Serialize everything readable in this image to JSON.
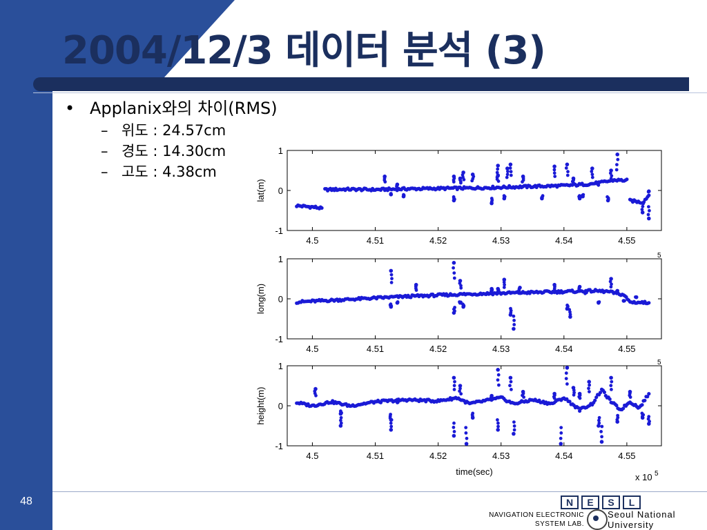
{
  "slide": {
    "title": "2004/12/3 데이터 분석 (3)",
    "bullet_main": "Applanix와의 차이(RMS)",
    "bullet_marker": "•",
    "sub_marker": "–",
    "sub_items": [
      "위도 : 24.57cm",
      "경도 : 14.30cm",
      "고도 : 4.38cm"
    ],
    "page_number": "48"
  },
  "footer": {
    "logo_letters": [
      "N",
      "E",
      "S",
      "L"
    ],
    "lab_line1": "NAVIGATION ELECTRONIC",
    "lab_line2": "SYSTEM LAB.",
    "univ_line1": "Seoul National",
    "univ_line2": "University"
  },
  "colors": {
    "band": "#2a4f9a",
    "title": "#1b2f5e",
    "marker": "#1a1ad6"
  },
  "chart_data": [
    {
      "type": "scatter",
      "ylabel": "lat(m)",
      "xlabel": "",
      "ylim": [
        -1,
        1
      ],
      "xlim": [
        4.496,
        4.5555
      ],
      "yticks": [
        "-1",
        "0",
        "1"
      ],
      "xticks": [
        4.5,
        4.51,
        4.52,
        4.53,
        4.54,
        4.55
      ],
      "xtick_labels": [
        "4.5",
        "4.51",
        "4.52",
        "4.53",
        "4.54",
        "4.55"
      ],
      "exponent": "",
      "baseline": [
        [
          4.4975,
          -0.38
        ],
        [
          4.5005,
          -0.42
        ],
        [
          4.5015,
          -0.45
        ],
        [
          4.502,
          0.02
        ],
        [
          4.505,
          0.03
        ],
        [
          4.51,
          0.02
        ],
        [
          4.515,
          0.04
        ],
        [
          4.52,
          0.05
        ],
        [
          4.525,
          0.06
        ],
        [
          4.53,
          0.08
        ],
        [
          4.535,
          0.1
        ],
        [
          4.54,
          0.12
        ],
        [
          4.544,
          0.16
        ],
        [
          4.546,
          0.2
        ],
        [
          4.548,
          0.26
        ],
        [
          4.55,
          0.25
        ],
        [
          4.5505,
          -0.25
        ],
        [
          4.5525,
          -0.3
        ],
        [
          4.5535,
          -0.12
        ]
      ],
      "outliers": [
        [
          4.5125,
          -0.1
        ],
        [
          4.5115,
          0.35
        ],
        [
          4.5135,
          0.15
        ],
        [
          4.5145,
          -0.15
        ],
        [
          4.5225,
          -0.25
        ],
        [
          4.5225,
          0.35
        ],
        [
          4.5235,
          0.3
        ],
        [
          4.524,
          0.45
        ],
        [
          4.5255,
          0.4
        ],
        [
          4.5285,
          -0.32
        ],
        [
          4.5295,
          0.38
        ],
        [
          4.5295,
          0.62
        ],
        [
          4.5305,
          -0.2
        ],
        [
          4.531,
          0.55
        ],
        [
          4.5315,
          0.65
        ],
        [
          4.5335,
          0.35
        ],
        [
          4.5365,
          -0.2
        ],
        [
          4.5385,
          0.6
        ],
        [
          4.5405,
          0.65
        ],
        [
          4.5415,
          0.3
        ],
        [
          4.5425,
          -0.2
        ],
        [
          4.543,
          -0.15
        ],
        [
          4.5445,
          0.55
        ],
        [
          4.5455,
          0.2
        ],
        [
          4.547,
          -0.25
        ],
        [
          4.5475,
          0.5
        ],
        [
          4.5485,
          0.9
        ],
        [
          4.5525,
          -0.55
        ],
        [
          4.5535,
          -0.7
        ],
        [
          4.5535,
          -0.02
        ]
      ]
    },
    {
      "type": "scatter",
      "ylabel": "long(m)",
      "xlabel": "",
      "ylim": [
        -1,
        1
      ],
      "xlim": [
        4.496,
        4.5555
      ],
      "yticks": [
        "-1",
        "0",
        "1"
      ],
      "xticks": [
        4.5,
        4.51,
        4.52,
        4.53,
        4.54,
        4.55
      ],
      "xtick_labels": [
        "4.5",
        "4.51",
        "4.52",
        "4.53",
        "4.54",
        "4.55"
      ],
      "exponent": "5",
      "baseline": [
        [
          4.4975,
          -0.08
        ],
        [
          4.5,
          -0.06
        ],
        [
          4.505,
          -0.02
        ],
        [
          4.51,
          0.02
        ],
        [
          4.515,
          0.06
        ],
        [
          4.52,
          0.09
        ],
        [
          4.525,
          0.12
        ],
        [
          4.53,
          0.14
        ],
        [
          4.535,
          0.16
        ],
        [
          4.54,
          0.18
        ],
        [
          4.545,
          0.2
        ],
        [
          4.547,
          0.18
        ],
        [
          4.5495,
          0.1
        ],
        [
          4.5505,
          -0.08
        ],
        [
          4.5535,
          -0.1
        ]
      ],
      "outliers": [
        [
          4.5125,
          0.7
        ],
        [
          4.5125,
          -0.2
        ],
        [
          4.5135,
          -0.1
        ],
        [
          4.5165,
          0.35
        ],
        [
          4.5225,
          0.9
        ],
        [
          4.5225,
          -0.35
        ],
        [
          4.5235,
          0.45
        ],
        [
          4.5235,
          -0.1
        ],
        [
          4.524,
          -0.2
        ],
        [
          4.5285,
          0.25
        ],
        [
          4.5295,
          0.25
        ],
        [
          4.5305,
          0.48
        ],
        [
          4.5315,
          -0.4
        ],
        [
          4.532,
          -0.75
        ],
        [
          4.533,
          0.28
        ],
        [
          4.5385,
          0.35
        ],
        [
          4.5405,
          -0.25
        ],
        [
          4.541,
          -0.45
        ],
        [
          4.5425,
          0.3
        ],
        [
          4.5435,
          0.2
        ],
        [
          4.5455,
          -0.1
        ],
        [
          4.5475,
          0.5
        ],
        [
          4.5485,
          0.2
        ],
        [
          4.5495,
          -0.05
        ],
        [
          4.5515,
          0.04
        ]
      ]
    },
    {
      "type": "scatter",
      "ylabel": "height(m)",
      "xlabel": "time(sec)",
      "ylim": [
        -1,
        1
      ],
      "xlim": [
        4.496,
        4.5555
      ],
      "yticks": [
        "-1",
        "0",
        "1"
      ],
      "xticks": [
        4.5,
        4.51,
        4.52,
        4.53,
        4.54,
        4.55
      ],
      "xtick_labels": [
        "4.5",
        "4.51",
        "4.52",
        "4.53",
        "4.54",
        "4.55"
      ],
      "exponent": "5",
      "exponent_label": "x 10",
      "baseline": [
        [
          4.4975,
          0.08
        ],
        [
          4.5,
          0
        ],
        [
          4.5015,
          0.05
        ],
        [
          4.503,
          0.1
        ],
        [
          4.506,
          0
        ],
        [
          4.51,
          0.1
        ],
        [
          4.515,
          0.15
        ],
        [
          4.52,
          0.12
        ],
        [
          4.523,
          0.2
        ],
        [
          4.525,
          0.05
        ],
        [
          4.53,
          0.2
        ],
        [
          4.532,
          0.05
        ],
        [
          4.535,
          0.15
        ],
        [
          4.538,
          0.05
        ],
        [
          4.54,
          0.2
        ],
        [
          4.5425,
          -0.1
        ],
        [
          4.5445,
          0.05
        ],
        [
          4.546,
          0.4
        ],
        [
          4.5475,
          0.1
        ],
        [
          4.549,
          -0.1
        ],
        [
          4.5505,
          0.1
        ],
        [
          4.552,
          -0.05
        ],
        [
          4.5535,
          0.3
        ]
      ],
      "outliers": [
        [
          4.5005,
          0.42
        ],
        [
          4.5045,
          -0.2
        ],
        [
          4.5045,
          -0.5
        ],
        [
          4.5125,
          -0.35
        ],
        [
          4.5125,
          -0.6
        ],
        [
          4.5135,
          0.1
        ],
        [
          4.5225,
          0.7
        ],
        [
          4.5225,
          -0.75
        ],
        [
          4.5235,
          0.5
        ],
        [
          4.5245,
          -0.95
        ],
        [
          4.5255,
          -0.3
        ],
        [
          4.5285,
          0.25
        ],
        [
          4.5295,
          0.9
        ],
        [
          4.5295,
          -0.6
        ],
        [
          4.5315,
          0.7
        ],
        [
          4.532,
          -0.7
        ],
        [
          4.5335,
          0.35
        ],
        [
          4.5385,
          0.3
        ],
        [
          4.5395,
          -0.95
        ],
        [
          4.5405,
          0.95
        ],
        [
          4.5415,
          0.45
        ],
        [
          4.5425,
          0.3
        ],
        [
          4.544,
          0.6
        ],
        [
          4.5455,
          -0.5
        ],
        [
          4.546,
          -0.9
        ],
        [
          4.5475,
          0.7
        ],
        [
          4.5485,
          -0.4
        ],
        [
          4.5505,
          0.35
        ],
        [
          4.5525,
          -0.3
        ],
        [
          4.5535,
          -0.45
        ]
      ]
    }
  ]
}
